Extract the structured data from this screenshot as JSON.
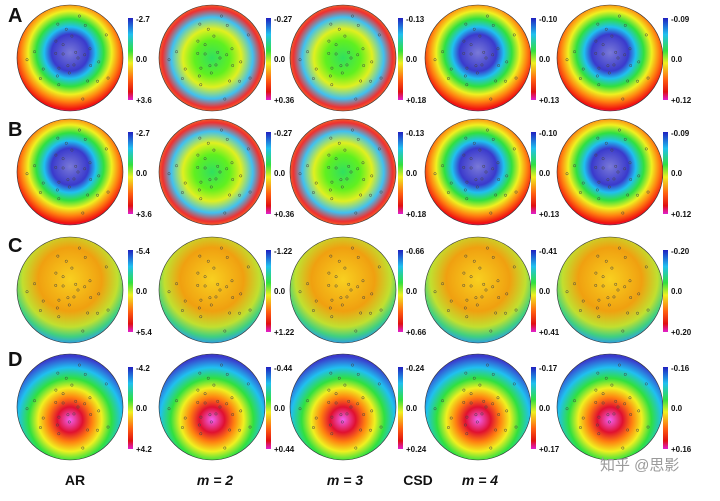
{
  "rows": [
    {
      "label": "A",
      "panels": [
        {
          "top": "-2.7",
          "mid": "0.0",
          "bottom": "+3.6"
        },
        {
          "top": "-0.27",
          "mid": "0.0",
          "bottom": "+0.36"
        },
        {
          "top": "-0.13",
          "mid": "0.0",
          "bottom": "+0.18"
        },
        {
          "top": "-0.10",
          "mid": "0.0",
          "bottom": "+0.13"
        },
        {
          "top": "-0.09",
          "mid": "0.0",
          "bottom": "+0.12"
        }
      ]
    },
    {
      "label": "B",
      "panels": [
        {
          "top": "-2.7",
          "mid": "0.0",
          "bottom": "+3.6"
        },
        {
          "top": "-0.27",
          "mid": "0.0",
          "bottom": "+0.36"
        },
        {
          "top": "-0.13",
          "mid": "0.0",
          "bottom": "+0.18"
        },
        {
          "top": "-0.10",
          "mid": "0.0",
          "bottom": "+0.13"
        },
        {
          "top": "-0.09",
          "mid": "0.0",
          "bottom": "+0.12"
        }
      ]
    },
    {
      "label": "C",
      "panels": [
        {
          "top": "-5.4",
          "mid": "0.0",
          "bottom": "+5.4"
        },
        {
          "top": "-1.22",
          "mid": "0.0",
          "bottom": "+1.22"
        },
        {
          "top": "-0.66",
          "mid": "0.0",
          "bottom": "+0.66"
        },
        {
          "top": "-0.41",
          "mid": "0.0",
          "bottom": "+0.41"
        },
        {
          "top": "-0.20",
          "mid": "0.0",
          "bottom": "+0.20"
        }
      ]
    },
    {
      "label": "D",
      "panels": [
        {
          "top": "-4.2",
          "mid": "0.0",
          "bottom": "+4.2"
        },
        {
          "top": "-0.44",
          "mid": "0.0",
          "bottom": "+0.44"
        },
        {
          "top": "-0.24",
          "mid": "0.0",
          "bottom": "+0.24"
        },
        {
          "top": "-0.17",
          "mid": "0.0",
          "bottom": "+0.17"
        },
        {
          "top": "-0.16",
          "mid": "0.0",
          "bottom": "+0.16"
        }
      ]
    }
  ],
  "column_labels": [
    "AR",
    "m = 2",
    "m = 3",
    "CSD",
    "m = 4"
  ],
  "watermark": "知乎 @思影"
}
